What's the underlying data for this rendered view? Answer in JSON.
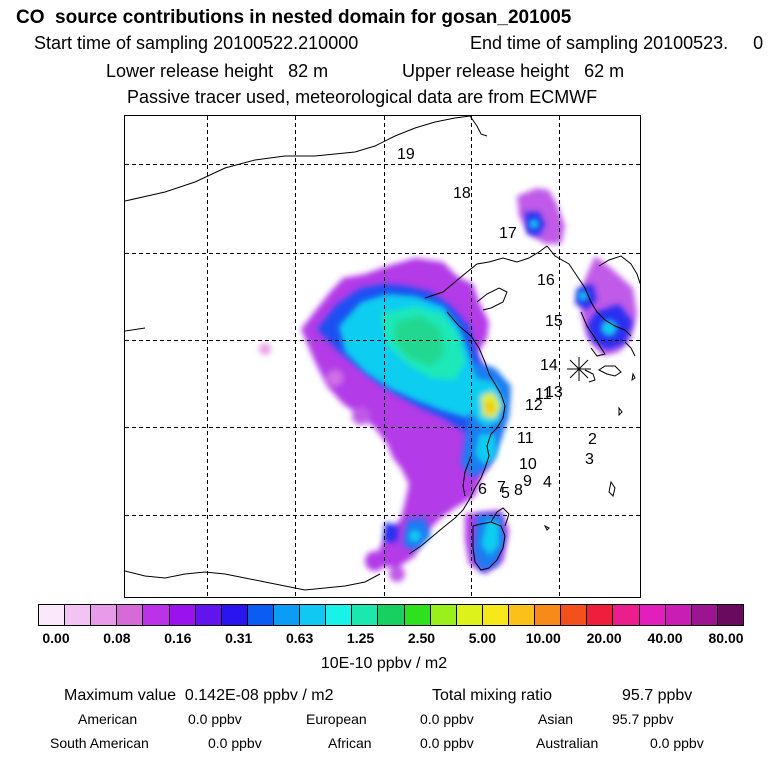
{
  "header": {
    "title": "CO  source contributions in nested domain for gosan_201005",
    "start_label": "Start time of sampling 20100522.210000",
    "end_label": "End time of sampling 20100523.     0",
    "lower_label": "Lower release height   82 m",
    "upper_label": "Upper release height   62 m",
    "tracer_note": "Passive tracer used, meteorological data are from ECMWF"
  },
  "map": {
    "trajectory_labels": [
      "19",
      "18",
      "17",
      "16",
      "15",
      "14",
      "13",
      "12",
      "11",
      "11",
      "10",
      "9",
      "8",
      "7",
      "6",
      "5",
      "4",
      "3",
      "2"
    ],
    "station_marker": "gosan"
  },
  "colorbar": {
    "colors": [
      "#fbe9fb",
      "#f3c4f3",
      "#e89be8",
      "#d66ad6",
      "#bb33e8",
      "#9a12ee",
      "#6214ee",
      "#2a14f0",
      "#0a5cf2",
      "#0b9df5",
      "#10c8f2",
      "#18f2e8",
      "#1ae8ae",
      "#18d060",
      "#2ee01e",
      "#9af01a",
      "#ddf21a",
      "#f6e81a",
      "#fbc01a",
      "#f88a1a",
      "#f4501c",
      "#ef1e3c",
      "#ec1e8e",
      "#e21ebc",
      "#c81eb4",
      "#9c1490",
      "#6a0a5e"
    ],
    "ticks": [
      "0.00",
      "0.08",
      "0.16",
      "0.31",
      "0.63",
      "1.25",
      "2.50",
      "5.00",
      "10.00",
      "20.00",
      "40.00",
      "80.00"
    ],
    "unit": "10E-10 ppbv / m2"
  },
  "summary": {
    "max_label": "Maximum value  0.142E-08 ppbv / m2",
    "total_label": "Total mixing ratio",
    "total_value": "95.7 ppbv",
    "regions": [
      {
        "name": "American",
        "value": "0.0 ppbv"
      },
      {
        "name": "European",
        "value": "0.0 ppbv"
      },
      {
        "name": "Asian",
        "value": "95.7 ppbv"
      },
      {
        "name": "South American",
        "value": "0.0 ppbv"
      },
      {
        "name": "African",
        "value": "0.0 ppbv"
      },
      {
        "name": "Australian",
        "value": "0.0 ppbv"
      }
    ]
  }
}
